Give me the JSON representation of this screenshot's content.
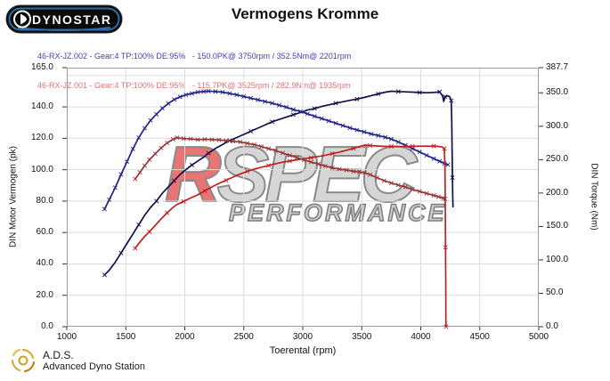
{
  "header": {
    "logo_text": "DYNOSTAR",
    "title": "Vermogens Kromme"
  },
  "legend": {
    "runs": [
      {
        "label": "46-RX-JZ.002 - Gear:4 TP:100% DE:95%   - 150.0PK@ 3750rpm / 352.5Nm@ 2201rpm",
        "color": "#4040c0"
      },
      {
        "label": "46-RX-JZ.001 - Gear:4 TP:100% DE:95%   - 115.7PK@ 3525rpm / 282.9Nm@ 1935rpm",
        "color": "#e07070"
      }
    ]
  },
  "watermark": {
    "part1": "R",
    "part2": "SPEC",
    "subtitle": "Performance",
    "part1_color": "#ea7474",
    "part2_color": "#d6d6d6",
    "subtitle_color": "#cecece"
  },
  "footer": {
    "abbr": "A.D.S.",
    "name": "Advanced Dyno Station"
  },
  "chart_data": {
    "type": "line",
    "title": "Vermogens Kromme",
    "xlabel": "Toerental (rpm)",
    "ylabel_left": "DIN Motor Vermogen (pk)",
    "ylabel_right": "DIN Torque (Nm)",
    "x_range": [
      1000,
      5000
    ],
    "y_left_range": [
      0,
      165
    ],
    "y_right_range": [
      0,
      387.7
    ],
    "grid": true,
    "x_ticks": [
      1000,
      1500,
      2000,
      2500,
      3000,
      3500,
      4000,
      4500,
      5000
    ],
    "y_left_ticks": [
      {
        "v": 165,
        "label": "165.0"
      },
      {
        "v": 140,
        "label": "140.0"
      },
      {
        "v": 120,
        "label": "120.0"
      },
      {
        "v": 100,
        "label": "100.0"
      },
      {
        "v": 80,
        "label": "80.0"
      },
      {
        "v": 60,
        "label": "60.0"
      },
      {
        "v": 40,
        "label": "40.0"
      },
      {
        "v": 20,
        "label": "20.0"
      },
      {
        "v": 0,
        "label": "0.0"
      }
    ],
    "y_right_ticks": [
      {
        "v": 387.7,
        "label": "387.7"
      },
      {
        "v": 350,
        "label": "350.0"
      },
      {
        "v": 300,
        "label": "300.0"
      },
      {
        "v": 250,
        "label": "250.0"
      },
      {
        "v": 200,
        "label": "200.0"
      },
      {
        "v": 150,
        "label": "150.0"
      },
      {
        "v": 100,
        "label": "100.0"
      },
      {
        "v": 50,
        "label": "50.0"
      },
      {
        "v": 0,
        "label": "0.0"
      }
    ],
    "h_gridlines_pk": [
      20,
      40,
      60,
      80,
      100,
      120,
      140,
      160
    ],
    "v_gridlines_rpm": [
      1500,
      2000,
      2500,
      3000,
      3500,
      4000,
      4500
    ],
    "series": [
      {
        "id": "power-002",
        "name": "Vermogen run 46-RX-JZ.002",
        "axis": "left",
        "unit": "pk",
        "color": "#10104f",
        "marker_every": 3,
        "peak": {
          "value": 150.0,
          "rpm": 3750
        },
        "points": [
          [
            1320,
            33
          ],
          [
            1360,
            36
          ],
          [
            1410,
            41
          ],
          [
            1460,
            47
          ],
          [
            1510,
            53
          ],
          [
            1560,
            59
          ],
          [
            1610,
            65
          ],
          [
            1660,
            71
          ],
          [
            1710,
            76
          ],
          [
            1760,
            80
          ],
          [
            1810,
            85
          ],
          [
            1860,
            89
          ],
          [
            1910,
            93
          ],
          [
            1960,
            97
          ],
          [
            2010,
            100
          ],
          [
            2060,
            103
          ],
          [
            2110,
            105.5
          ],
          [
            2160,
            108
          ],
          [
            2201,
            110.5
          ],
          [
            2260,
            113.5
          ],
          [
            2320,
            116
          ],
          [
            2380,
            118.5
          ],
          [
            2440,
            120.5
          ],
          [
            2500,
            122.5
          ],
          [
            2560,
            124.5
          ],
          [
            2620,
            126.5
          ],
          [
            2680,
            128.5
          ],
          [
            2740,
            130.5
          ],
          [
            2800,
            132
          ],
          [
            2860,
            133.5
          ],
          [
            2920,
            135
          ],
          [
            2980,
            136.5
          ],
          [
            3040,
            138
          ],
          [
            3100,
            139
          ],
          [
            3160,
            140.3
          ],
          [
            3220,
            141.3
          ],
          [
            3280,
            142.3
          ],
          [
            3340,
            143.3
          ],
          [
            3400,
            144.2
          ],
          [
            3460,
            145
          ],
          [
            3520,
            146
          ],
          [
            3580,
            147.2
          ],
          [
            3640,
            148.3
          ],
          [
            3700,
            149.4
          ],
          [
            3750,
            150
          ],
          [
            3810,
            149.8
          ],
          [
            3870,
            149.6
          ],
          [
            3930,
            149.4
          ],
          [
            3990,
            149.2
          ],
          [
            4050,
            149
          ],
          [
            4110,
            149.2
          ],
          [
            4160,
            149.6
          ],
          [
            4185,
            147
          ],
          [
            4195,
            143.5
          ],
          [
            4205,
            146.5
          ],
          [
            4225,
            147
          ],
          [
            4245,
            146.5
          ],
          [
            4258,
            144
          ],
          [
            4263,
            131
          ],
          [
            4266,
            112
          ],
          [
            4269,
            95
          ],
          [
            4271,
            83
          ],
          [
            4273,
            76
          ]
        ]
      },
      {
        "id": "torque-002",
        "name": "Koppel run 46-RX-JZ.002",
        "axis": "right",
        "unit": "Nm",
        "color": "#22228e",
        "marker_every": 1,
        "peak": {
          "value": 352.5,
          "rpm": 2201
        },
        "points": [
          [
            1320,
            176
          ],
          [
            1360,
            190
          ],
          [
            1410,
            208
          ],
          [
            1460,
            228
          ],
          [
            1510,
            247
          ],
          [
            1560,
            266
          ],
          [
            1610,
            283
          ],
          [
            1660,
            297
          ],
          [
            1710,
            309
          ],
          [
            1760,
            318
          ],
          [
            1810,
            327
          ],
          [
            1860,
            334
          ],
          [
            1910,
            340
          ],
          [
            1960,
            344
          ],
          [
            2010,
            347
          ],
          [
            2060,
            349
          ],
          [
            2110,
            351
          ],
          [
            2160,
            352
          ],
          [
            2201,
            352.5
          ],
          [
            2260,
            352
          ],
          [
            2320,
            351
          ],
          [
            2380,
            349
          ],
          [
            2440,
            347
          ],
          [
            2500,
            344.5
          ],
          [
            2560,
            342
          ],
          [
            2620,
            339.5
          ],
          [
            2680,
            337
          ],
          [
            2740,
            334.5
          ],
          [
            2800,
            331.5
          ],
          [
            2860,
            328.5
          ],
          [
            2920,
            325
          ],
          [
            2980,
            322
          ],
          [
            3040,
            318.5
          ],
          [
            3100,
            315
          ],
          [
            3160,
            311.5
          ],
          [
            3220,
            308
          ],
          [
            3280,
            304.5
          ],
          [
            3340,
            301
          ],
          [
            3400,
            297.5
          ],
          [
            3460,
            294.5
          ],
          [
            3520,
            291.5
          ],
          [
            3580,
            288.5
          ],
          [
            3640,
            286
          ],
          [
            3700,
            283.5
          ],
          [
            3750,
            280.9
          ],
          [
            3810,
            276.5
          ],
          [
            3870,
            271.5
          ],
          [
            3930,
            266.5
          ],
          [
            3990,
            261.5
          ],
          [
            4050,
            256.5
          ],
          [
            4110,
            251.5
          ],
          [
            4160,
            247.5
          ],
          [
            4200,
            244.5
          ],
          [
            4230,
            242.5
          ]
        ]
      },
      {
        "id": "power-001",
        "name": "Vermogen run 46-RX-JZ.001",
        "axis": "left",
        "unit": "pk",
        "color": "#c01f1f",
        "marker_every": 3,
        "peak": {
          "value": 115.7,
          "rpm": 3525
        },
        "points": [
          [
            1580,
            50
          ],
          [
            1620,
            54
          ],
          [
            1660,
            57.5
          ],
          [
            1700,
            60.5
          ],
          [
            1750,
            64.5
          ],
          [
            1800,
            68.7
          ],
          [
            1850,
            72.5
          ],
          [
            1900,
            76
          ],
          [
            1935,
            77.9
          ],
          [
            1990,
            79.8
          ],
          [
            2050,
            82
          ],
          [
            2110,
            84
          ],
          [
            2170,
            86.5
          ],
          [
            2230,
            89
          ],
          [
            2290,
            91.3
          ],
          [
            2350,
            93.3
          ],
          [
            2410,
            95.3
          ],
          [
            2470,
            97.3
          ],
          [
            2530,
            99
          ],
          [
            2590,
            100.4
          ],
          [
            2650,
            101.6
          ],
          [
            2710,
            102.7
          ],
          [
            2770,
            103.8
          ],
          [
            2830,
            104.8
          ],
          [
            2890,
            105.5
          ],
          [
            2950,
            106.3
          ],
          [
            3010,
            107
          ],
          [
            3070,
            107.7
          ],
          [
            3130,
            108.4
          ],
          [
            3190,
            109.2
          ],
          [
            3250,
            110.2
          ],
          [
            3310,
            111.2
          ],
          [
            3370,
            112.4
          ],
          [
            3430,
            113.6
          ],
          [
            3480,
            114.7
          ],
          [
            3525,
            115.7
          ],
          [
            3570,
            115.4
          ],
          [
            3630,
            115.1
          ],
          [
            3690,
            114.9
          ],
          [
            3750,
            114.8
          ],
          [
            3810,
            114.7
          ],
          [
            3870,
            114.8
          ],
          [
            3930,
            114.9
          ],
          [
            3990,
            115
          ],
          [
            4050,
            115
          ],
          [
            4110,
            115
          ],
          [
            4150,
            114.8
          ],
          [
            4180,
            114.4
          ],
          [
            4200,
            113.5
          ],
          [
            4205,
            100
          ],
          [
            4208,
            73
          ],
          [
            4210,
            50.5
          ],
          [
            4212,
            25
          ],
          [
            4213,
            5
          ],
          [
            4214,
            0
          ]
        ]
      },
      {
        "id": "torque-001",
        "name": "Koppel run 46-RX-JZ.001",
        "axis": "right",
        "unit": "Nm",
        "color": "#9a3535",
        "marker_every": 1,
        "peak": {
          "value": 282.9,
          "rpm": 1935
        },
        "points": [
          [
            1580,
            221
          ],
          [
            1620,
            231
          ],
          [
            1660,
            241
          ],
          [
            1700,
            250
          ],
          [
            1750,
            259
          ],
          [
            1800,
            267.5
          ],
          [
            1850,
            275
          ],
          [
            1900,
            280.5
          ],
          [
            1935,
            282.9
          ],
          [
            1990,
            281.5
          ],
          [
            2050,
            281
          ],
          [
            2110,
            280
          ],
          [
            2170,
            280.5
          ],
          [
            2230,
            280
          ],
          [
            2290,
            279.5
          ],
          [
            2350,
            278.5
          ],
          [
            2410,
            277.5
          ],
          [
            2470,
            276.5
          ],
          [
            2530,
            274.5
          ],
          [
            2590,
            272.5
          ],
          [
            2650,
            269.5
          ],
          [
            2710,
            266.5
          ],
          [
            2770,
            263.5
          ],
          [
            2830,
            260
          ],
          [
            2890,
            256.5
          ],
          [
            2950,
            253
          ],
          [
            3010,
            249.5
          ],
          [
            3070,
            246.5
          ],
          [
            3130,
            243.5
          ],
          [
            3190,
            240.5
          ],
          [
            3250,
            238
          ],
          [
            3310,
            236
          ],
          [
            3370,
            234.5
          ],
          [
            3430,
            232.5
          ],
          [
            3480,
            231.5
          ],
          [
            3525,
            230.5
          ],
          [
            3570,
            227.5
          ],
          [
            3630,
            223
          ],
          [
            3690,
            218.5
          ],
          [
            3750,
            215
          ],
          [
            3810,
            212
          ],
          [
            3870,
            209
          ],
          [
            3930,
            205.5
          ],
          [
            3990,
            202.5
          ],
          [
            4050,
            199.5
          ],
          [
            4110,
            196.5
          ],
          [
            4150,
            194.5
          ],
          [
            4190,
            192.5
          ],
          [
            4205,
            191.5
          ]
        ]
      }
    ]
  }
}
